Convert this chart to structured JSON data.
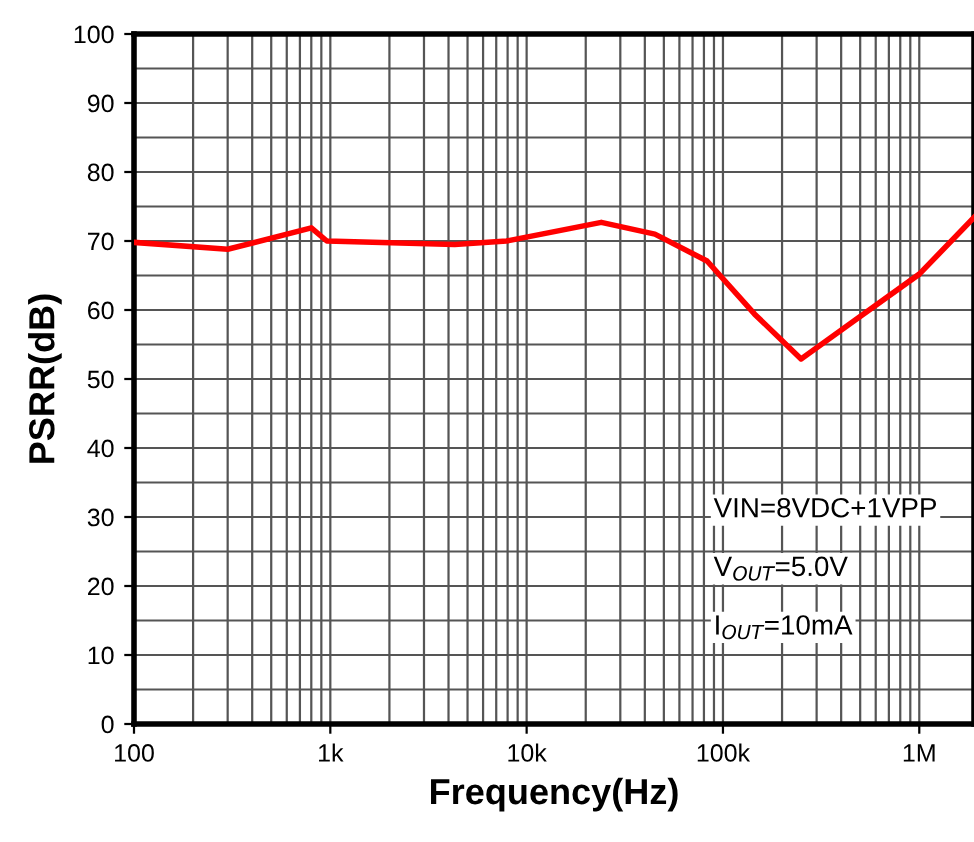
{
  "chart_data": {
    "type": "line",
    "xlabel": "Frequency(Hz)",
    "ylabel": "PSRR(dB)",
    "x": [
      100,
      300,
      800,
      960,
      4300,
      7900,
      24000,
      45000,
      83000,
      145000,
      250000,
      470000,
      1000000,
      1900000
    ],
    "series": [
      {
        "color": "#ff0000",
        "values": [
          69.8,
          68.8,
          71.9,
          70,
          69.5,
          70,
          72.7,
          71,
          67.1,
          59.4,
          52.9,
          58.5,
          65.2,
          73.4
        ]
      }
    ],
    "log": "x",
    "xlim": [
      100,
      1900000
    ],
    "ylim": [
      0,
      100
    ],
    "xticks": [
      {
        "value": 100,
        "label": "100"
      },
      {
        "value": 1000,
        "label": "1k"
      },
      {
        "value": 10000,
        "label": "10k"
      },
      {
        "value": 100000,
        "label": "100k"
      },
      {
        "value": 1000000,
        "label": "1M"
      }
    ],
    "yticks": [
      0,
      10,
      20,
      30,
      40,
      50,
      60,
      70,
      80,
      90,
      100
    ],
    "grid": true,
    "legend": false,
    "line_style": "solid",
    "marker": "none",
    "annotations": [
      "VIN=8VDC+1VPP",
      "V$_{OUT}$=5.0V",
      "I$_{OUT}$=10mA"
    ]
  }
}
